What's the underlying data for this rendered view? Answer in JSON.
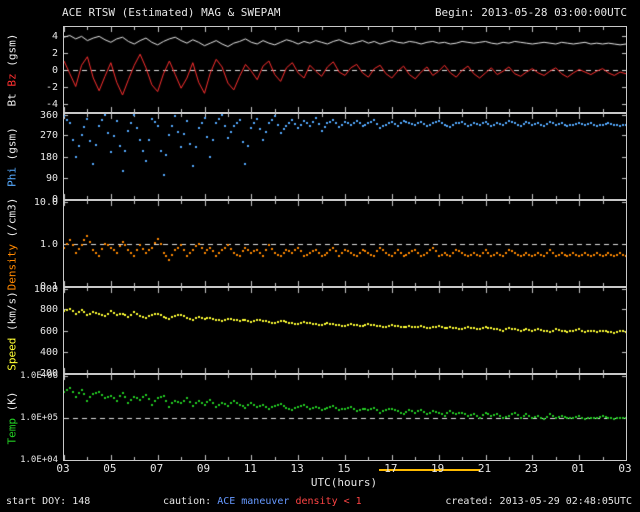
{
  "header": {
    "title": "ACE RTSW (Estimated) MAG & SWEPAM",
    "begin": "Begin: 2013-05-28 03:00:00UTC"
  },
  "footer": {
    "start_doy": "start DOY: 148",
    "caution_label": "caution: ",
    "caution_maneuver": "ACE maneuver",
    "caution_density": " density < 1",
    "created": "created: 2013-05-29 02:48:05UTC"
  },
  "colors": {
    "background": "#000000",
    "frame": "#c8c8c8",
    "text": "#e6e6e6",
    "dashed": "#e0e0e0",
    "caution_maneuver": "#6699ff",
    "caution_density": "#ff4444"
  },
  "chart_data": {
    "type": "line",
    "title": "ACE RTSW (Estimated) MAG & SWEPAM",
    "x_label": "UTC(hours)",
    "x_range_hours": [
      3,
      27
    ],
    "x_ticks": [
      "03",
      "05",
      "07",
      "09",
      "11",
      "13",
      "15",
      "17",
      "19",
      "21",
      "23",
      "01",
      "03"
    ],
    "x_tick_hours": [
      3,
      5,
      7,
      9,
      11,
      13,
      15,
      17,
      19,
      21,
      23,
      25,
      27
    ],
    "maneuver_bar": {
      "hours": [
        16.5,
        20.8
      ],
      "color": "#ffbb00"
    },
    "panels": [
      {
        "name": "bt-bz",
        "scale": "linear",
        "ylim": [
          -5,
          5
        ],
        "dashed_at": 0,
        "yticks": [
          {
            "v": 4,
            "l": "4"
          },
          {
            "v": 2,
            "l": "2"
          },
          {
            "v": 0,
            "l": "0"
          },
          {
            "v": -2,
            "l": "-2"
          },
          {
            "v": -4,
            "l": "-4"
          }
        ],
        "ylabel_parts": [
          {
            "text": "Bt ",
            "color": "#e8e8e8"
          },
          {
            "text": "Bz ",
            "color": "#ff3030"
          },
          {
            "text": "(gsm)",
            "color": "#e8e8e8"
          }
        ],
        "series": [
          {
            "name": "Bt",
            "color": "#e8e8e8",
            "style": "line",
            "values": [
              3.8,
              4.0,
              3.6,
              3.9,
              3.4,
              3.7,
              3.9,
              3.5,
              3.2,
              3.6,
              3.8,
              3.3,
              3.0,
              3.4,
              3.7,
              3.2,
              2.9,
              3.3,
              3.6,
              3.8,
              3.4,
              3.1,
              3.5,
              3.2,
              2.8,
              3.1,
              3.4,
              3.0,
              2.7,
              3.1,
              3.3,
              3.6,
              3.2,
              3.0,
              3.4,
              3.1,
              2.9,
              3.2,
              3.5,
              3.3,
              3.0,
              3.3,
              3.1,
              3.4,
              3.2,
              3.0,
              3.3,
              3.5,
              3.2,
              3.0,
              3.2,
              3.4,
              3.1,
              3.3,
              3.0,
              3.2,
              3.4,
              3.2,
              3.1,
              3.3,
              3.2,
              3.0,
              3.2,
              3.3,
              3.1,
              3.2,
              3.0,
              3.1,
              3.3,
              3.2,
              3.1,
              3.2,
              3.3,
              3.1,
              3.0,
              3.2,
              3.1,
              3.3,
              3.2,
              3.1,
              3.0,
              3.1,
              3.2,
              3.1,
              3.0,
              3.2,
              3.1,
              3.0,
              3.1,
              3.2,
              3.0,
              3.1,
              3.0,
              3.1,
              3.0,
              2.9,
              3.0
            ]
          },
          {
            "name": "Bz",
            "color": "#ff3030",
            "style": "line",
            "values": [
              1.0,
              -0.5,
              -2.0,
              0.5,
              1.5,
              -1.0,
              -2.5,
              -0.8,
              0.8,
              -1.5,
              -3.0,
              -1.2,
              0.5,
              1.8,
              0.2,
              -1.8,
              -2.6,
              -0.5,
              1.0,
              -0.6,
              -2.2,
              -1.0,
              0.8,
              -1.5,
              -2.8,
              -0.4,
              1.2,
              0.3,
              -1.6,
              -2.4,
              -0.8,
              0.6,
              -0.2,
              -1.2,
              0.4,
              1.0,
              -0.6,
              -1.4,
              0.2,
              0.8,
              -0.4,
              -1.0,
              0.5,
              -0.2,
              -0.8,
              0.3,
              0.9,
              -0.3,
              -0.7,
              0.2,
              0.6,
              -0.4,
              -0.9,
              0.1,
              0.5,
              -0.5,
              -1.0,
              -0.2,
              0.4,
              -0.6,
              -1.1,
              -0.3,
              0.3,
              -0.7,
              -0.2,
              0.5,
              -0.4,
              -0.9,
              -0.1,
              0.4,
              -0.5,
              -1.0,
              -0.4,
              0.2,
              -0.6,
              -0.2,
              0.3,
              -0.5,
              -0.8,
              -0.3,
              0.1,
              -0.4,
              -0.7,
              -0.2,
              0.2,
              -0.5,
              -0.9,
              -0.4,
              0.0,
              -0.3,
              -0.6,
              -0.2,
              0.1,
              -0.4,
              -0.7,
              -0.3,
              -0.5
            ]
          }
        ]
      },
      {
        "name": "phi",
        "scale": "linear",
        "ylim": [
          0,
          360
        ],
        "dashed_at": null,
        "yticks": [
          {
            "v": 360,
            "l": "360"
          },
          {
            "v": 270,
            "l": "270"
          },
          {
            "v": 180,
            "l": "180"
          },
          {
            "v": 90,
            "l": "90"
          },
          {
            "v": 0,
            "l": "0"
          }
        ],
        "ylabel_parts": [
          {
            "text": "Phi ",
            "color": "#55aaff"
          },
          {
            "text": "(gsm)",
            "color": "#e8e8e8"
          }
        ],
        "series": [
          {
            "name": "Phi",
            "color": "#55aaff",
            "style": "dots",
            "values": [
              350,
              320,
              180,
              270,
              340,
              150,
              310,
              360,
              200,
              330,
              120,
              290,
              355,
              250,
              160,
              340,
              310,
              100,
              270,
              350,
              220,
              330,
              140,
              300,
              345,
              180,
              320,
              355,
              260,
              310,
              335,
              150,
              300,
              340,
              250,
              320,
              350,
              280,
              310,
              335,
              300,
              330,
              310,
              345,
              290,
              320,
              335,
              305,
              325,
              315,
              330,
              310,
              320,
              335,
              300,
              315,
              325,
              310,
              330,
              320,
              315,
              325,
              310,
              320,
              330,
              315,
              305,
              320,
              325,
              310,
              320,
              315,
              325,
              310,
              320,
              315,
              330,
              320,
              310,
              325,
              315,
              320,
              310,
              325,
              315,
              320,
              310,
              315,
              320,
              315,
              320,
              310,
              315,
              320,
              315,
              310,
              315
            ]
          }
        ]
      },
      {
        "name": "density",
        "scale": "log",
        "ylim": [
          0.1,
          10.0
        ],
        "dashed_at": 1.0,
        "yticks": [
          {
            "v": 10.0,
            "l": "10.0"
          },
          {
            "v": 1.0,
            "l": "1.0"
          },
          {
            "v": 0.1,
            "l": "0.1"
          }
        ],
        "ylabel_parts": [
          {
            "text": "Density ",
            "color": "#ff8800"
          },
          {
            "text": "(/cm3)",
            "color": "#e8e8e8"
          }
        ],
        "series": [
          {
            "name": "Density",
            "color": "#ff8800",
            "style": "dots",
            "values": [
              0.8,
              1.2,
              0.6,
              0.9,
              1.5,
              0.7,
              0.5,
              1.0,
              0.8,
              0.6,
              1.1,
              0.7,
              0.5,
              0.9,
              0.6,
              0.8,
              1.3,
              0.6,
              0.4,
              0.7,
              0.9,
              0.5,
              0.7,
              1.0,
              0.6,
              0.8,
              0.5,
              0.7,
              0.9,
              0.6,
              0.5,
              0.8,
              0.6,
              0.7,
              0.5,
              0.9,
              0.6,
              0.5,
              0.7,
              0.6,
              0.8,
              0.5,
              0.6,
              0.7,
              0.5,
              0.6,
              0.8,
              0.5,
              0.7,
              0.6,
              0.5,
              0.7,
              0.6,
              0.5,
              0.8,
              0.6,
              0.5,
              0.7,
              0.5,
              0.6,
              0.7,
              0.5,
              0.6,
              0.8,
              0.5,
              0.6,
              0.5,
              0.7,
              0.6,
              0.5,
              0.6,
              0.5,
              0.7,
              0.5,
              0.6,
              0.5,
              0.7,
              0.6,
              0.5,
              0.6,
              0.5,
              0.6,
              0.5,
              0.7,
              0.5,
              0.6,
              0.5,
              0.6,
              0.5,
              0.6,
              0.5,
              0.6,
              0.5,
              0.6,
              0.5,
              0.6,
              0.5
            ]
          }
        ]
      },
      {
        "name": "speed",
        "scale": "linear",
        "ylim": [
          200,
          1000
        ],
        "dashed_at": null,
        "yticks": [
          {
            "v": 1000,
            "l": "1000"
          },
          {
            "v": 800,
            "l": "800"
          },
          {
            "v": 600,
            "l": "600"
          },
          {
            "v": 400,
            "l": "400"
          },
          {
            "v": 200,
            "l": "200"
          }
        ],
        "ylabel_parts": [
          {
            "text": "Speed ",
            "color": "#ffff33"
          },
          {
            "text": "(km/s)",
            "color": "#e8e8e8"
          }
        ],
        "series": [
          {
            "name": "Speed",
            "color": "#ffff33",
            "style": "dots",
            "values": [
              780,
              800,
              760,
              790,
              750,
              770,
              760,
              740,
              780,
              750,
              760,
              730,
              770,
              740,
              720,
              750,
              760,
              730,
              710,
              740,
              750,
              720,
              700,
              730,
              710,
              720,
              700,
              690,
              710,
              700,
              690,
              700,
              680,
              700,
              690,
              680,
              670,
              690,
              680,
              670,
              660,
              680,
              670,
              660,
              650,
              670,
              660,
              650,
              640,
              660,
              650,
              640,
              660,
              650,
              640,
              630,
              650,
              640,
              630,
              640,
              630,
              640,
              620,
              630,
              640,
              620,
              630,
              620,
              610,
              630,
              620,
              610,
              630,
              620,
              610,
              600,
              620,
              610,
              600,
              610,
              600,
              610,
              600,
              590,
              610,
              600,
              590,
              600,
              610,
              590,
              600,
              590,
              600,
              590,
              580,
              600,
              590
            ]
          }
        ]
      },
      {
        "name": "temp",
        "scale": "log",
        "ylim": [
          10000.0,
          1000000.0
        ],
        "dashed_at": 100000.0,
        "yticks": [
          {
            "v": 1000000.0,
            "l": "1.0E+06"
          },
          {
            "v": 100000.0,
            "l": "1.0E+05"
          },
          {
            "v": 10000.0,
            "l": "1.0E+04"
          }
        ],
        "ylabel_parts": [
          {
            "text": "Temp ",
            "color": "#22cc22"
          },
          {
            "text": "(K)",
            "color": "#e8e8e8"
          }
        ],
        "series": [
          {
            "name": "Temp",
            "color": "#22cc22",
            "style": "dots",
            "values": [
              400000.0,
              500000.0,
              300000.0,
              450000.0,
              250000.0,
              350000.0,
              400000.0,
              280000.0,
              320000.0,
              250000.0,
              380000.0,
              220000.0,
              300000.0,
              260000.0,
              340000.0,
              200000.0,
              280000.0,
              320000.0,
              180000.0,
              250000.0,
              220000.0,
              280000.0,
              190000.0,
              240000.0,
              200000.0,
              260000.0,
              180000.0,
              220000.0,
              190000.0,
              240000.0,
              200000.0,
              170000.0,
              220000.0,
              180000.0,
              200000.0,
              160000.0,
              190000.0,
              210000.0,
              170000.0,
              150000.0,
              180000.0,
              200000.0,
              160000.0,
              180000.0,
              150000.0,
              170000.0,
              190000.0,
              150000.0,
              160000.0,
              180000.0,
              140000.0,
              160000.0,
              150000.0,
              170000.0,
              130000.0,
              150000.0,
              160000.0,
              140000.0,
              120000.0,
              150000.0,
              130000.0,
              150000.0,
              120000.0,
              140000.0,
              130000.0,
              110000.0,
              140000.0,
              120000.0,
              130000.0,
              110000.0,
              120000.0,
              100000.0,
              130000.0,
              110000.0,
              120000.0,
              100000.0,
              110000.0,
              130000.0,
              100000.0,
              120000.0,
              100000.0,
              110000.0,
              90000.0,
              120000.0,
              100000.0,
              110000.0,
              95000.0,
              100000.0,
              110000.0,
              90000.0,
              100000.0,
              95000.0,
              110000.0,
              100000.0,
              90000.0,
              100000.0,
              95000.0
            ]
          }
        ]
      }
    ]
  }
}
